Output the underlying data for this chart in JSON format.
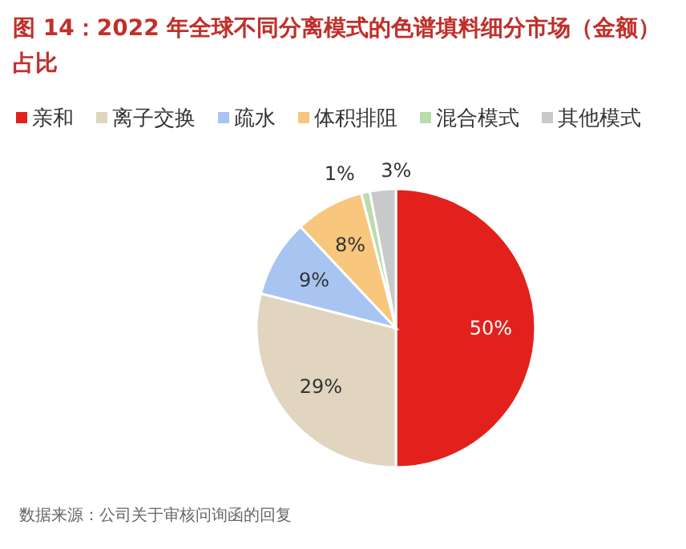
{
  "chart_data": {
    "type": "pie",
    "title": "图 14：2022 年全球不同分离模式的色谱填料细分市场（金额）占比",
    "categories": [
      "亲和",
      "离子交换",
      "疏水",
      "体积排阻",
      "混合模式",
      "其他模式"
    ],
    "values": [
      50,
      29,
      9,
      8,
      1,
      3
    ],
    "colors": [
      "#e3211c",
      "#e1d5bf",
      "#a8c5f2",
      "#f8c67c",
      "#b9dcaa",
      "#c9c9c9"
    ],
    "value_labels": [
      "50%",
      "29%",
      "9%",
      "8%",
      "1%",
      "3%"
    ],
    "legend": "top",
    "annotations": [
      "数据来源：公司关于审核问询函的回复"
    ]
  }
}
